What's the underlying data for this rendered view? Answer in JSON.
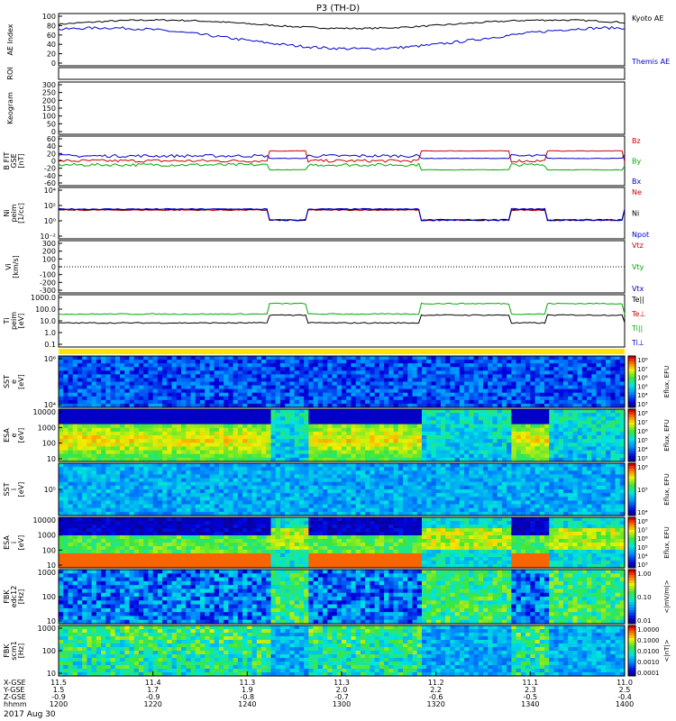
{
  "chart_data": {
    "type": "line",
    "title": "P3 (TH-D)",
    "date_label": "2017 Aug 30",
    "x_axis": {
      "row_labels": [
        "X-GSE",
        "Y-GSE",
        "Z-GSE",
        "hhmm"
      ],
      "ticks": [
        {
          "x": "11.5",
          "y": "1.5",
          "z": "-0.9",
          "t": "1200"
        },
        {
          "x": "11.4",
          "y": "1.7",
          "z": "-0.9",
          "t": "1220"
        },
        {
          "x": "11.3",
          "y": "1.9",
          "z": "-0.8",
          "t": "1240"
        },
        {
          "x": "11.3",
          "y": "2.0",
          "z": "-0.7",
          "t": "1300"
        },
        {
          "x": "11.2",
          "y": "2.2",
          "z": "-0.6",
          "t": "1320"
        },
        {
          "x": "11.1",
          "y": "2.3",
          "z": "-0.5",
          "t": "1340"
        },
        {
          "x": "11.0",
          "y": "2.5",
          "z": "-0.4",
          "t": "1400"
        }
      ]
    },
    "panels": [
      {
        "id": "ae",
        "type": "line",
        "ylabel": "AE Index",
        "yticks": [
          "100",
          "80",
          "60",
          "40",
          "20",
          "0"
        ],
        "series": [
          {
            "name": "Kyoto AE",
            "color": "#000000"
          },
          {
            "name": "Themis AE",
            "color": "#0000cc"
          }
        ]
      },
      {
        "id": "roi",
        "type": "line",
        "ylabel": "ROI",
        "yticks": []
      },
      {
        "id": "keo",
        "type": "line",
        "ylabel": "Keogram",
        "yticks": [
          "300",
          "250",
          "200",
          "150",
          "100",
          "50",
          "0"
        ]
      },
      {
        "id": "bfit",
        "type": "line",
        "ylabel": "B FIT\nGSE\n[nT]",
        "yticks": [
          "60",
          "40",
          "20",
          "0",
          "-20",
          "-40",
          "-60"
        ],
        "series": [
          {
            "name": "Bz",
            "color": "#cc0000"
          },
          {
            "name": "By",
            "color": "#00aa00"
          },
          {
            "name": "Bx",
            "color": "#0000cc"
          }
        ]
      },
      {
        "id": "ni",
        "type": "line",
        "ylabel": "Ni\npeim\n[1/cc]",
        "yticks": [
          "10⁴",
          "10²",
          "10⁰",
          "10⁻²"
        ],
        "series": [
          {
            "name": "Ne",
            "color": "#cc0000"
          },
          {
            "name": "Ni",
            "color": "#000000"
          },
          {
            "name": "Npot",
            "color": "#0000cc"
          }
        ]
      },
      {
        "id": "vi",
        "type": "line",
        "ylabel": "Vi\n[km/s]",
        "yticks": [
          "300",
          "200",
          "100",
          "0",
          "-100",
          "-200",
          "-300"
        ],
        "series": [
          {
            "name": "Vtz",
            "color": "#cc0000"
          },
          {
            "name": "Vty",
            "color": "#00aa00"
          },
          {
            "name": "Vtx",
            "color": "#0000cc"
          }
        ]
      },
      {
        "id": "ti",
        "type": "line",
        "ylabel": "Ti\npeim\n[eV]",
        "yticks": [
          "1000.0",
          "100.0",
          "10.0",
          "1.0",
          "0.1"
        ],
        "series": [
          {
            "name": "Te||",
            "color": "#000000"
          },
          {
            "name": "Te⊥",
            "color": "#cc0000"
          },
          {
            "name": "Ti||",
            "color": "#00aa00"
          },
          {
            "name": "Ti⊥",
            "color": "#0000cc"
          }
        ]
      },
      {
        "id": "sst_e",
        "type": "heatmap",
        "ylabel": "SST\ne\n[eV]",
        "yticks": [
          "10⁶",
          "10⁴"
        ],
        "cbar_label": "Eflux, EFU",
        "cbar_ticks": [
          "10⁸",
          "10⁷",
          "10⁶",
          "10⁵",
          "10⁴",
          "10³"
        ]
      },
      {
        "id": "esa_e",
        "type": "heatmap",
        "ylabel": "ESA\ne\n[eV]",
        "yticks": [
          "10000",
          "1000",
          "100",
          "10"
        ],
        "cbar_label": "Eflux, EFU",
        "cbar_ticks": [
          "10⁸",
          "10⁷",
          "10⁶",
          "10⁵",
          "10⁴",
          "10³"
        ]
      },
      {
        "id": "sst_i",
        "type": "heatmap",
        "ylabel": "SST\ni\n[eV]",
        "yticks": [
          "10⁵"
        ],
        "cbar_label": "Eflux, EFU",
        "cbar_ticks": [
          "10⁶",
          "10⁵",
          "10⁴"
        ]
      },
      {
        "id": "esa_i",
        "type": "heatmap",
        "ylabel": "ESA\ni\n[eV]",
        "yticks": [
          "10000",
          "1000",
          "100",
          "10"
        ],
        "cbar_label": "Eflux, EFU",
        "cbar_ticks": [
          "10⁸",
          "10⁷",
          "10⁶",
          "10⁵",
          "10⁴",
          "10³"
        ]
      },
      {
        "id": "fbk_e",
        "type": "heatmap",
        "ylabel": "FBK\nedc12\n[Hz]",
        "yticks": [
          "1000",
          "100",
          "10"
        ],
        "cbar_label": "<|mV/m|>",
        "cbar_ticks": [
          "1.00",
          "0.10",
          "0.01"
        ]
      },
      {
        "id": "fbk_b",
        "type": "heatmap",
        "ylabel": "FBK\nscm1\n[Hz]",
        "yticks": [
          "1000",
          "100",
          "10"
        ],
        "cbar_label": "<|nT|>",
        "cbar_ticks": [
          "1.0000",
          "0.1000",
          "0.0100",
          "0.0010",
          "0.0001"
        ]
      }
    ]
  }
}
